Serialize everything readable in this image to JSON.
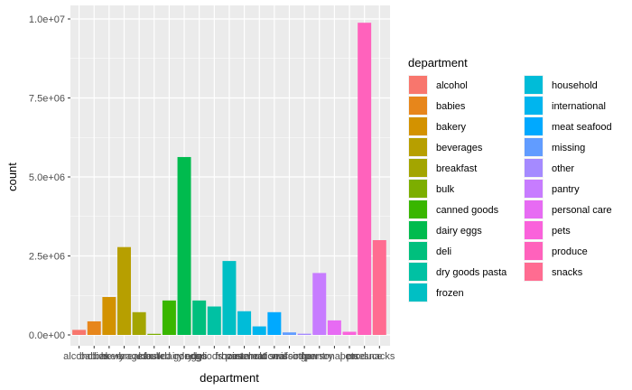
{
  "chart_data": {
    "type": "bar",
    "xlabel": "department",
    "ylabel": "count",
    "ylim": [
      0,
      10300000
    ],
    "y_ticks": [
      {
        "value": 0,
        "label": "0.0e+00"
      },
      {
        "value": 2500000,
        "label": "2.5e+06"
      },
      {
        "value": 5000000,
        "label": "5.0e+06"
      },
      {
        "value": 7500000,
        "label": "7.5e+06"
      },
      {
        "value": 10000000,
        "label": "1.0e+07"
      }
    ],
    "categories": [
      "alcohol",
      "babies",
      "bakery",
      "beverages",
      "breakfast",
      "bulk",
      "canned goods",
      "dairy eggs",
      "deli",
      "dry goods pasta",
      "frozen",
      "household",
      "international",
      "meat seafood",
      "missing",
      "other",
      "pantry",
      "personal care",
      "pets",
      "produce",
      "snacks"
    ],
    "values": [
      160000,
      430000,
      1200000,
      2780000,
      720000,
      35000,
      1090000,
      5630000,
      1090000,
      900000,
      2340000,
      750000,
      270000,
      720000,
      80000,
      38000,
      1960000,
      460000,
      100000,
      9880000,
      3000000
    ],
    "colors": [
      "#F8766D",
      "#E88526",
      "#D39200",
      "#B79F00",
      "#93AA00",
      "#5EB300",
      "#00BA38",
      "#00BF74",
      "#00C19F",
      "#00BFC4",
      "#00B9E3",
      "#00ADFA",
      "#619CFF",
      "#AE87FF",
      "#DB72FB",
      "#F564E3",
      "#FF61C3",
      "#FF689F",
      "#FF6C91",
      "#FF67A4",
      "#FF6C91"
    ],
    "legend": {
      "title": "department",
      "position": "right",
      "entries": [
        {
          "label": "alcohol",
          "color": "#F8766D"
        },
        {
          "label": "babies",
          "color": "#E7861B"
        },
        {
          "label": "bakery",
          "color": "#D39200"
        },
        {
          "label": "beverages",
          "color": "#B79F00"
        },
        {
          "label": "breakfast",
          "color": "#A3A500"
        },
        {
          "label": "bulk",
          "color": "#7CAE00"
        },
        {
          "label": "canned goods",
          "color": "#39B600"
        },
        {
          "label": "dairy eggs",
          "color": "#00BB4E"
        },
        {
          "label": "deli",
          "color": "#00BF7D"
        },
        {
          "label": "dry goods pasta",
          "color": "#00C1A3"
        },
        {
          "label": "frozen",
          "color": "#00BFC4"
        },
        {
          "label": "household",
          "color": "#00BCD8"
        },
        {
          "label": "international",
          "color": "#00B5EE"
        },
        {
          "label": "meat seafood",
          "color": "#00A9FF"
        },
        {
          "label": "missing",
          "color": "#619CFF"
        },
        {
          "label": "other",
          "color": "#A58AFF"
        },
        {
          "label": "pantry",
          "color": "#C77CFF"
        },
        {
          "label": "personal care",
          "color": "#E76BF3"
        },
        {
          "label": "pets",
          "color": "#FA62DB"
        },
        {
          "label": "produce",
          "color": "#FF62BC"
        },
        {
          "label": "snacks",
          "color": "#FF6C91"
        }
      ]
    },
    "grid": true,
    "panel_background": "#EBEBEB"
  }
}
